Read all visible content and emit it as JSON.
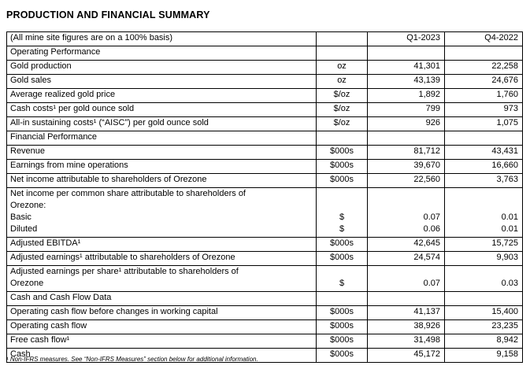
{
  "page": {
    "title": "PRODUCTION AND FINANCIAL SUMMARY",
    "footnote": "¹ Non-IFRS measures. See “Non-IFRS Measures” section below for additional information."
  },
  "table": {
    "columns": {
      "label": "(All mine site figures are on a 100% basis)",
      "unit": "",
      "q1": "Q1-2023",
      "q4": "Q4-2022"
    },
    "rows": [
      {
        "type": "section",
        "label": [
          "Operating Performance"
        ],
        "unit": [],
        "q1": [],
        "q4": []
      },
      {
        "type": "data",
        "label": [
          "Gold production"
        ],
        "unit": [
          "oz"
        ],
        "q1": [
          "41,301"
        ],
        "q4": [
          "22,258"
        ]
      },
      {
        "type": "data",
        "label": [
          "Gold sales"
        ],
        "unit": [
          "oz"
        ],
        "q1": [
          "43,139"
        ],
        "q4": [
          "24,676"
        ]
      },
      {
        "type": "data",
        "label": [
          "Average realized gold price"
        ],
        "unit": [
          "$/oz"
        ],
        "q1": [
          "1,892"
        ],
        "q4": [
          "1,760"
        ]
      },
      {
        "type": "data",
        "label": [
          "Cash costs¹ per gold ounce sold"
        ],
        "unit": [
          "$/oz"
        ],
        "q1": [
          "799"
        ],
        "q4": [
          "973"
        ]
      },
      {
        "type": "data",
        "label": [
          "All-in sustaining costs¹ (“AISC”) per gold ounce sold"
        ],
        "unit": [
          "$/oz"
        ],
        "q1": [
          "926"
        ],
        "q4": [
          "1,075"
        ]
      },
      {
        "type": "section",
        "label": [
          "Financial Performance"
        ],
        "unit": [],
        "q1": [],
        "q4": []
      },
      {
        "type": "data",
        "label": [
          "Revenue"
        ],
        "unit": [
          "$000s"
        ],
        "q1": [
          "81,712"
        ],
        "q4": [
          "43,431"
        ]
      },
      {
        "type": "data",
        "label": [
          "Earnings from mine operations"
        ],
        "unit": [
          "$000s"
        ],
        "q1": [
          "39,670"
        ],
        "q4": [
          "16,660"
        ]
      },
      {
        "type": "data",
        "label": [
          "Net income attributable to shareholders of Orezone"
        ],
        "unit": [
          "$000s"
        ],
        "q1": [
          "22,560"
        ],
        "q4": [
          "3,763"
        ]
      },
      {
        "type": "data",
        "label": [
          "Net income per common share attributable to shareholders of",
          "Orezone:",
          "Basic",
          "Diluted"
        ],
        "unit": [
          "$",
          "$"
        ],
        "q1": [
          "0.07",
          "0.06"
        ],
        "q4": [
          "0.01",
          "0.01"
        ]
      },
      {
        "type": "data",
        "label": [
          "Adjusted EBITDA¹"
        ],
        "unit": [
          "$000s"
        ],
        "q1": [
          "42,645"
        ],
        "q4": [
          "15,725"
        ]
      },
      {
        "type": "data",
        "label": [
          "Adjusted earnings¹ attributable to shareholders of Orezone"
        ],
        "unit": [
          "$000s"
        ],
        "q1": [
          "24,574"
        ],
        "q4": [
          "9,903"
        ]
      },
      {
        "type": "data",
        "label": [
          "Adjusted earnings per share¹ attributable to shareholders of",
          "Orezone"
        ],
        "unit": [
          "$"
        ],
        "q1": [
          "0.07"
        ],
        "q4": [
          "0.03"
        ]
      },
      {
        "type": "section",
        "label": [
          "Cash and Cash Flow Data"
        ],
        "unit": [],
        "q1": [],
        "q4": []
      },
      {
        "type": "data",
        "label": [
          "Operating cash flow before changes in working capital"
        ],
        "unit": [
          "$000s"
        ],
        "q1": [
          "41,137"
        ],
        "q4": [
          "15,400"
        ]
      },
      {
        "type": "data",
        "label": [
          "Operating cash flow"
        ],
        "unit": [
          "$000s"
        ],
        "q1": [
          "38,926"
        ],
        "q4": [
          "23,235"
        ]
      },
      {
        "type": "data",
        "label": [
          "Free cash flow¹"
        ],
        "unit": [
          "$000s"
        ],
        "q1": [
          "31,498"
        ],
        "q4": [
          "8,942"
        ]
      },
      {
        "type": "data",
        "label": [
          "Cash"
        ],
        "unit": [
          "$000s"
        ],
        "q1": [
          "45,172"
        ],
        "q4": [
          "9,158"
        ]
      }
    ]
  }
}
